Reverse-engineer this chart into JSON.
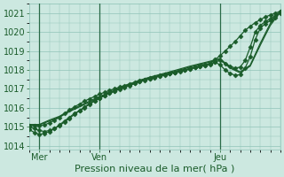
{
  "title": "",
  "xlabel": "Pression niveau de la mer( hPa )",
  "ylabel": "",
  "xlim": [
    0,
    100
  ],
  "ylim": [
    1013.8,
    1021.5
  ],
  "yticks": [
    1014,
    1015,
    1016,
    1017,
    1018,
    1019,
    1020,
    1021
  ],
  "xtick_positions": [
    4,
    28,
    76
  ],
  "xtick_labels": [
    "Mer",
    "Ven",
    "Jeu"
  ],
  "vline_positions": [
    4,
    28,
    76
  ],
  "bg_color": "#cce8e0",
  "plot_bg_color": "#cce8e0",
  "grid_color": "#90c4b8",
  "line_color": "#1a5c2a",
  "marker_color": "#1a5c2a",
  "vline_color": "#2a6a48",
  "series": [
    {
      "x": [
        0,
        2,
        4,
        6,
        8,
        10,
        12,
        14,
        16,
        18,
        20,
        22,
        24,
        26,
        28,
        30,
        32,
        34,
        36,
        38,
        40,
        42,
        44,
        46,
        48,
        50,
        52,
        54,
        56,
        58,
        60,
        62,
        64,
        66,
        68,
        70,
        72,
        74,
        76,
        78,
        80,
        82,
        84,
        86,
        88,
        90,
        92,
        94,
        96,
        98,
        100
      ],
      "y": [
        1015.0,
        1014.9,
        1014.8,
        1014.75,
        1014.8,
        1014.9,
        1015.1,
        1015.3,
        1015.5,
        1015.7,
        1015.85,
        1016.0,
        1016.2,
        1016.35,
        1016.5,
        1016.65,
        1016.78,
        1016.9,
        1017.0,
        1017.1,
        1017.2,
        1017.3,
        1017.4,
        1017.48,
        1017.55,
        1017.62,
        1017.68,
        1017.75,
        1017.82,
        1017.88,
        1017.95,
        1018.02,
        1018.08,
        1018.15,
        1018.22,
        1018.28,
        1018.35,
        1018.55,
        1018.75,
        1019.0,
        1019.25,
        1019.5,
        1019.8,
        1020.1,
        1020.3,
        1020.5,
        1020.65,
        1020.8,
        1020.9,
        1021.0,
        1021.1
      ],
      "marker": "D",
      "markersize": 2.5,
      "linewidth": 0.9
    },
    {
      "x": [
        0,
        2,
        4,
        6,
        8,
        10,
        12,
        14,
        16,
        18,
        20,
        22,
        24,
        26,
        28,
        30,
        32,
        34,
        36,
        38,
        40,
        42,
        44,
        46,
        48,
        50,
        52,
        54,
        56,
        58,
        60,
        62,
        64,
        66,
        68,
        70,
        72,
        74,
        76,
        78,
        80,
        82,
        84,
        86,
        88,
        90,
        92,
        94,
        96,
        98,
        100
      ],
      "y": [
        1014.85,
        1014.7,
        1014.6,
        1014.65,
        1014.75,
        1014.9,
        1015.05,
        1015.25,
        1015.45,
        1015.65,
        1015.85,
        1016.05,
        1016.22,
        1016.38,
        1016.52,
        1016.65,
        1016.77,
        1016.88,
        1016.98,
        1017.08,
        1017.18,
        1017.28,
        1017.38,
        1017.46,
        1017.53,
        1017.6,
        1017.67,
        1017.73,
        1017.8,
        1017.86,
        1017.92,
        1017.98,
        1018.05,
        1018.12,
        1018.18,
        1018.25,
        1018.32,
        1018.42,
        1018.5,
        1018.35,
        1018.2,
        1018.1,
        1018.15,
        1018.5,
        1019.2,
        1020.0,
        1020.35,
        1020.55,
        1020.7,
        1020.85,
        1021.0
      ],
      "marker": "D",
      "markersize": 2.5,
      "linewidth": 0.9
    },
    {
      "x": [
        0,
        2,
        4,
        6,
        8,
        10,
        12,
        14,
        16,
        18,
        20,
        22,
        24,
        26,
        28,
        30,
        32,
        34,
        36,
        38,
        40,
        42,
        44,
        46,
        48,
        50,
        52,
        54,
        56,
        58,
        60,
        62,
        64,
        66,
        68,
        70,
        72,
        74,
        76,
        78,
        80,
        82,
        84,
        86,
        88,
        90,
        92,
        94,
        96,
        98,
        100
      ],
      "y": [
        1015.05,
        1015.05,
        1015.05,
        1015.1,
        1015.2,
        1015.35,
        1015.5,
        1015.7,
        1015.88,
        1016.05,
        1016.2,
        1016.35,
        1016.48,
        1016.6,
        1016.72,
        1016.82,
        1016.92,
        1017.0,
        1017.1,
        1017.18,
        1017.27,
        1017.35,
        1017.43,
        1017.5,
        1017.57,
        1017.63,
        1017.7,
        1017.76,
        1017.82,
        1017.88,
        1017.94,
        1018.0,
        1018.06,
        1018.12,
        1018.18,
        1018.24,
        1018.3,
        1018.4,
        1018.28,
        1018.0,
        1017.82,
        1017.72,
        1017.75,
        1018.1,
        1018.7,
        1019.6,
        1020.2,
        1020.45,
        1020.6,
        1020.78,
        1021.1
      ],
      "marker": "D",
      "markersize": 2.5,
      "linewidth": 0.9
    },
    {
      "x": [
        0,
        4,
        8,
        12,
        16,
        20,
        24,
        28,
        32,
        36,
        40,
        44,
        48,
        52,
        56,
        60,
        64,
        68,
        72,
        76,
        80,
        84,
        88,
        92,
        96,
        100
      ],
      "y": [
        1015.1,
        1015.1,
        1015.3,
        1015.5,
        1015.8,
        1016.05,
        1016.3,
        1016.55,
        1016.78,
        1017.0,
        1017.2,
        1017.42,
        1017.58,
        1017.72,
        1017.85,
        1018.0,
        1018.15,
        1018.28,
        1018.42,
        1018.55,
        1018.1,
        1017.85,
        1018.2,
        1019.3,
        1020.35,
        1021.05
      ],
      "marker": null,
      "markersize": 0,
      "linewidth": 0.9
    },
    {
      "x": [
        0,
        4,
        8,
        12,
        16,
        20,
        24,
        28,
        32,
        36,
        40,
        44,
        48,
        52,
        56,
        60,
        64,
        68,
        72,
        76,
        80,
        84,
        88,
        92,
        96,
        100
      ],
      "y": [
        1015.12,
        1015.12,
        1015.35,
        1015.55,
        1015.85,
        1016.1,
        1016.35,
        1016.6,
        1016.82,
        1017.05,
        1017.25,
        1017.46,
        1017.62,
        1017.76,
        1017.9,
        1018.05,
        1018.2,
        1018.33,
        1018.46,
        1018.6,
        1018.15,
        1017.9,
        1018.25,
        1019.4,
        1020.45,
        1021.1
      ],
      "marker": null,
      "markersize": 0,
      "linewidth": 0.9
    }
  ]
}
